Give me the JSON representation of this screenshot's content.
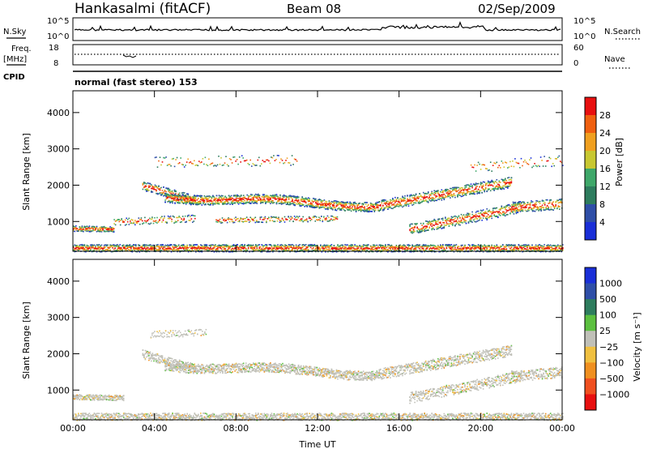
{
  "header": {
    "site": "Hankasalmi (fitACF)",
    "beam": "Beam 08",
    "date": "02/Sep/2009"
  },
  "top_panels": {
    "nsky_label": "N.Sky",
    "nsearch_label": "N.Search",
    "noise_tick_top": "10^5",
    "noise_tick_bottom": "10^0",
    "freq_label_line1": "Freq.",
    "freq_label_line2": "[MHz]",
    "freq_tick_top": "18",
    "freq_tick_bottom": "8",
    "nave_label": "Nave",
    "nave_tick_top": "60",
    "nave_tick_bottom": "0",
    "cpid_label": "CPID",
    "cpid_text": "normal (fast stereo) 153"
  },
  "colors": {
    "power_scale": [
      "#1a2fd8",
      "#2f4fa8",
      "#2e7d5e",
      "#3fa86a",
      "#c8c832",
      "#f0a020",
      "#f06010",
      "#e81010"
    ],
    "velocity_scale": [
      "#1a2fd8",
      "#2f4fa8",
      "#2e7d5e",
      "#5cc040",
      "#c0c0b8",
      "#f0c040",
      "#f09020",
      "#f05020",
      "#e81010"
    ]
  },
  "chart_data": [
    {
      "type": "heatmap",
      "name": "power",
      "ylabel": "Slant Range [km]",
      "xlabel": "",
      "ylim": [
        180,
        4600
      ],
      "xlim": [
        0,
        24
      ],
      "yticks": [
        1000,
        2000,
        3000,
        4000
      ],
      "xticks": [
        "00:00",
        "04:00",
        "08:00",
        "12:00",
        "16:00",
        "20:00",
        "00:00"
      ],
      "colorbar": {
        "label": "Power [dB]",
        "ticks": [
          "28",
          "24",
          "20",
          "16",
          "12",
          "8",
          "4"
        ],
        "range": [
          0,
          30
        ]
      }
    },
    {
      "type": "heatmap",
      "name": "velocity",
      "ylabel": "Slant Range [km]",
      "xlabel": "Time UT",
      "ylim": [
        180,
        4600
      ],
      "xlim": [
        0,
        24
      ],
      "yticks": [
        1000,
        2000,
        3000,
        4000
      ],
      "xticks": [
        "00:00",
        "04:00",
        "08:00",
        "12:00",
        "16:00",
        "20:00",
        "00:00"
      ],
      "colorbar": {
        "label": "Velocity [m s⁻¹]",
        "ticks": [
          "1000",
          "500",
          "100",
          "25",
          "−25",
          "−100",
          "−500",
          "−1000"
        ],
        "range": [
          -1000,
          1000
        ]
      }
    }
  ]
}
